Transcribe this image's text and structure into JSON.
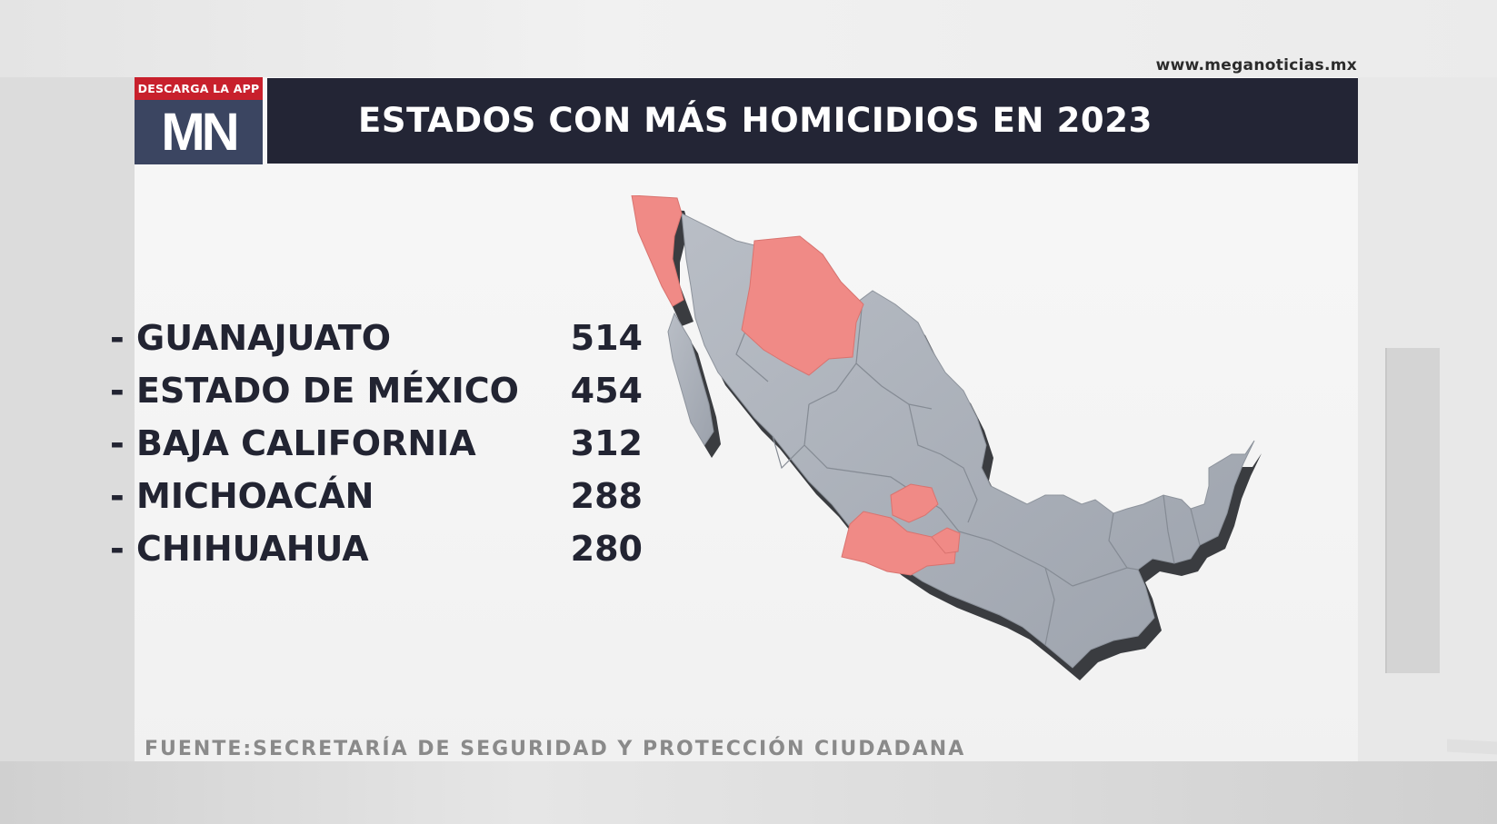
{
  "header": {
    "website": "www.meganoticias.mx",
    "logo_banner": "DESCARGA LA APP",
    "logo_text": "MN",
    "title": "ESTADOS CON MÁS HOMICIDIOS EN 2023"
  },
  "ranking": [
    {
      "state": "- GUANAJUATO",
      "value": "514"
    },
    {
      "state": "- ESTADO DE MÉXICO",
      "value": "454"
    },
    {
      "state": "- BAJA CALIFORNIA",
      "value": "312"
    },
    {
      "state": "- MICHOACÁN",
      "value": "288"
    },
    {
      "state": "- CHIHUAHUA",
      "value": "280"
    }
  ],
  "source": "FUENTE:SECRETARÍA DE SEGURIDAD Y PROTECCIÓN CIUDADANA",
  "map": {
    "country": "Mexico",
    "highlighted_states": [
      "Guanajuato",
      "Estado de México",
      "Baja California",
      "Michoacán",
      "Chihuahua"
    ],
    "highlight_color": "#f08a86",
    "base_color": "#a9afb8",
    "side_color": "#3a3c40"
  },
  "colors": {
    "title_bar": "#232535",
    "logo_red": "#c8202c",
    "logo_blue": "#3b4561"
  }
}
